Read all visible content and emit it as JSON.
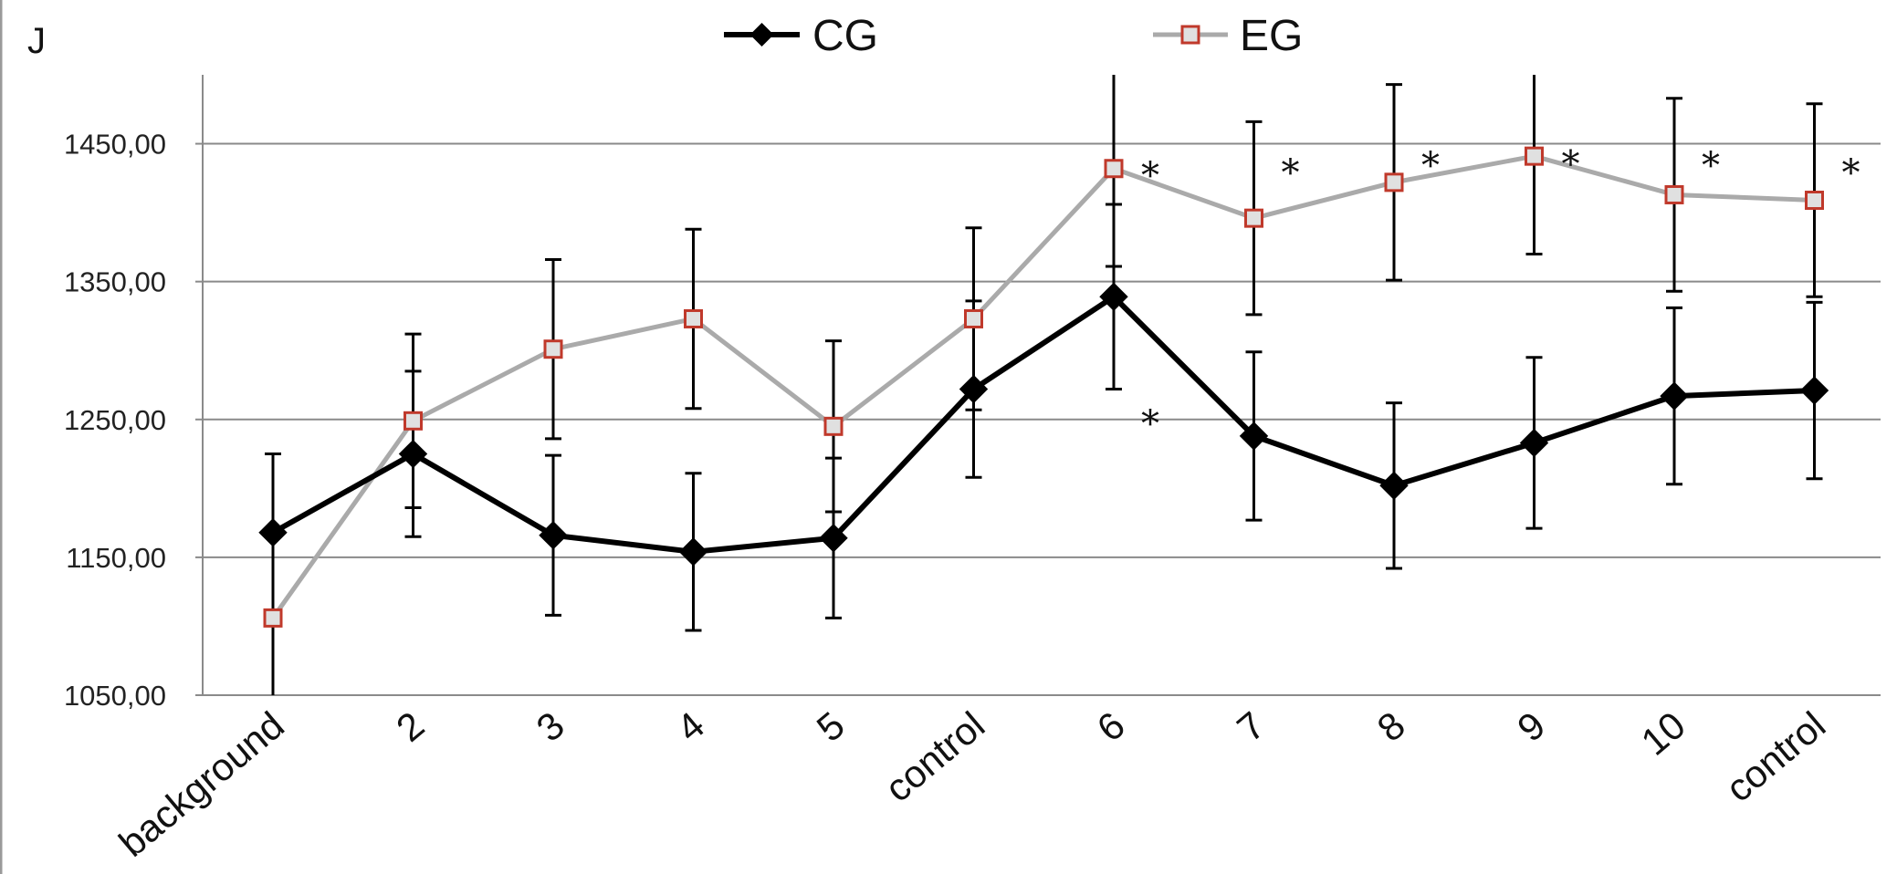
{
  "chart_data": {
    "type": "line",
    "title": "",
    "ylabel": "J",
    "xlabel": "",
    "categories": [
      "background",
      "2",
      "3",
      "4",
      "5",
      "control",
      "6",
      "7",
      "8",
      "9",
      "10",
      "control"
    ],
    "ylim": [
      1050,
      1500
    ],
    "yticks": [
      1050,
      1150,
      1250,
      1350,
      1450
    ],
    "ytick_labels": [
      "1050,00",
      "1150,00",
      "1250,00",
      "1350,00",
      "1450,00"
    ],
    "grid": true,
    "legend_position": "top-center",
    "series": [
      {
        "name": "CG",
        "color": "#000000",
        "marker": "diamond",
        "values": [
          1168,
          1225,
          1166,
          1154,
          1164,
          1272,
          1339,
          1238,
          1202,
          1233,
          1267,
          1271
        ],
        "errors": [
          57,
          60,
          58,
          57,
          58,
          64,
          67,
          61,
          60,
          62,
          64,
          64
        ]
      },
      {
        "name": "EG",
        "color": "#aaaaaa",
        "marker_fill": "#e0e0e0",
        "marker_edge": "#c0392b",
        "marker": "square",
        "values": [
          1106,
          1249,
          1301,
          1323,
          1245,
          1323,
          1432,
          1396,
          1422,
          1441,
          1413,
          1409
        ],
        "errors": [
          63,
          63,
          65,
          65,
          62,
          66,
          71,
          70,
          71,
          71,
          70,
          70
        ]
      }
    ],
    "annotations": [
      {
        "text": "*",
        "category_index": 6,
        "value": 1430
      },
      {
        "text": "*",
        "category_index": 6,
        "value": 1250
      },
      {
        "text": "*",
        "category_index": 7,
        "value": 1432
      },
      {
        "text": "*",
        "category_index": 8,
        "value": 1437
      },
      {
        "text": "*",
        "category_index": 9,
        "value": 1438
      },
      {
        "text": "*",
        "category_index": 10,
        "value": 1437
      },
      {
        "text": "*",
        "category_index": 11,
        "value": 1432
      }
    ]
  }
}
